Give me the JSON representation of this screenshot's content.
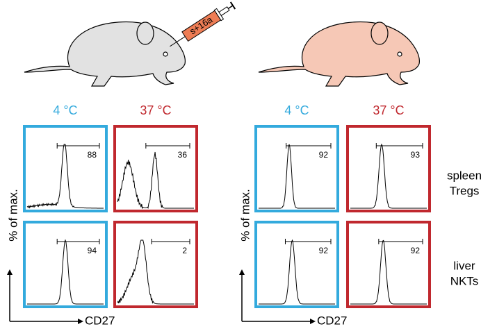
{
  "syringe_label": "s+16a",
  "column_labels": [
    "4 °C",
    "37 °C",
    "4 °C",
    "37 °C"
  ],
  "row_labels": [
    [
      "spleen",
      "Tregs"
    ],
    [
      "liver",
      "NKTs"
    ]
  ],
  "y_axis_label": "% of max.",
  "x_axis_label": "CD27",
  "gate_percentages": [
    [
      "88",
      "36",
      "92",
      "93"
    ],
    [
      "94",
      "2",
      "92",
      "92"
    ]
  ]
}
